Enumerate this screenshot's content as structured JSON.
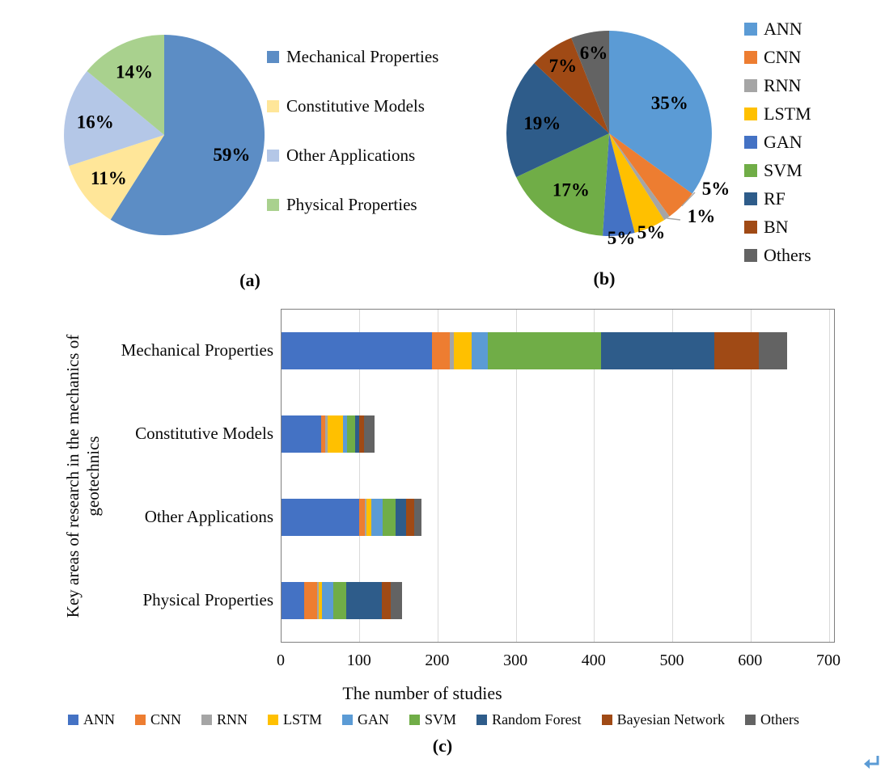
{
  "figure": {
    "captions": {
      "a": "(a)",
      "b": "(b)",
      "c": "(c)"
    }
  },
  "icons": {
    "corner": "return-arrow"
  },
  "chart_data": [
    {
      "id": "pie_a",
      "type": "pie",
      "legend_position": "right",
      "slices": [
        {
          "label": "Mechanical Properties",
          "value": 59,
          "pct_label": "59%",
          "color": "#5C8DC5"
        },
        {
          "label": "Constitutive Models",
          "value": 11,
          "pct_label": "11%",
          "color": "#FFE699"
        },
        {
          "label": "Other Applications",
          "value": 16,
          "pct_label": "16%",
          "color": "#B4C7E7"
        },
        {
          "label": "Physical Properties",
          "value": 14,
          "pct_label": "14%",
          "color": "#A9D18E"
        }
      ]
    },
    {
      "id": "pie_b",
      "type": "pie",
      "legend_position": "right",
      "slices": [
        {
          "label": "ANN",
          "value": 35,
          "pct_label": "35%",
          "color": "#5B9BD5"
        },
        {
          "label": "CNN",
          "value": 5,
          "pct_label": "5%",
          "color": "#ED7D31"
        },
        {
          "label": "RNN",
          "value": 1,
          "pct_label": "1%",
          "color": "#A5A5A5"
        },
        {
          "label": "LSTM",
          "value": 5,
          "pct_label": "5%",
          "color": "#FFC000"
        },
        {
          "label": "GAN",
          "value": 5,
          "pct_label": "5%",
          "color": "#4472C4"
        },
        {
          "label": "SVM",
          "value": 17,
          "pct_label": "17%",
          "color": "#70AD47"
        },
        {
          "label": "RF",
          "value": 19,
          "pct_label": "19%",
          "color": "#2E5C8A"
        },
        {
          "label": "BN",
          "value": 7,
          "pct_label": "7%",
          "color": "#A04A15"
        },
        {
          "label": "Others",
          "value": 6,
          "pct_label": "6%",
          "color": "#636363"
        }
      ]
    },
    {
      "id": "bar_c",
      "type": "bar",
      "orientation": "horizontal",
      "stacked": true,
      "grid": true,
      "legend_position": "bottom",
      "xlabel": "The number of studies",
      "ylabel": "Key areas of research in the mechanics of geotechnics",
      "xlim": [
        0,
        700
      ],
      "xticks": [
        0,
        100,
        200,
        300,
        400,
        500,
        600,
        700
      ],
      "categories": [
        "Mechanical Properties",
        "Constitutive Models",
        "Other Applications",
        "Physical Properties"
      ],
      "series": [
        {
          "name": "ANN",
          "color": "#4472C4",
          "values": [
            192,
            51,
            99,
            29
          ]
        },
        {
          "name": "CNN",
          "color": "#ED7D31",
          "values": [
            23,
            5,
            8,
            17
          ]
        },
        {
          "name": "RNN",
          "color": "#A5A5A5",
          "values": [
            5,
            3,
            2,
            2
          ]
        },
        {
          "name": "LSTM",
          "color": "#FFC000",
          "values": [
            23,
            20,
            6,
            4
          ]
        },
        {
          "name": "GAN",
          "color": "#5B9BD5",
          "values": [
            21,
            5,
            14,
            14
          ]
        },
        {
          "name": "SVM",
          "color": "#70AD47",
          "values": [
            145,
            10,
            17,
            17
          ]
        },
        {
          "name": "Random Forest",
          "color": "#2E5C8A",
          "values": [
            144,
            5,
            14,
            45
          ]
        },
        {
          "name": "Bayesian Network",
          "color": "#A04A15",
          "values": [
            57,
            7,
            10,
            12
          ]
        },
        {
          "name": "Others",
          "color": "#636363",
          "values": [
            36,
            13,
            9,
            14
          ]
        }
      ]
    }
  ]
}
